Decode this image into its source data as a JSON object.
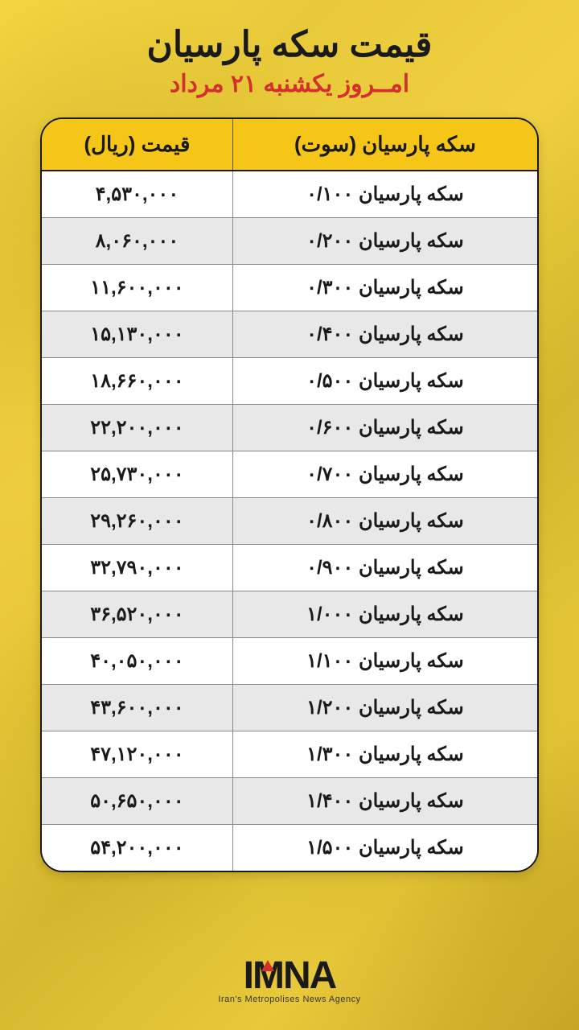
{
  "header": {
    "title": "قیمت سکه پارسیان",
    "subtitle": "امــروز یکشنبه ۲۱ مرداد"
  },
  "table": {
    "type": "table",
    "columns": [
      "سکه پارسیان (سوت)",
      "قیمت (ریال)"
    ],
    "header_bg": "#f5c518",
    "header_fg": "#1a1a1a",
    "header_fontsize": 26,
    "border_color": "#1a1a1a",
    "row_alt_bg": "#e8e8e8",
    "row_bg": "#ffffff",
    "cell_fontsize": 24,
    "border_radius": 28,
    "rows": [
      {
        "name": "سکه پارسیان ۰/۱۰۰",
        "price": "۴,۵۳۰,۰۰۰"
      },
      {
        "name": "سکه پارسیان ۰/۲۰۰",
        "price": "۸,۰۶۰,۰۰۰"
      },
      {
        "name": "سکه پارسیان ۰/۳۰۰",
        "price": "۱۱,۶۰۰,۰۰۰"
      },
      {
        "name": "سکه پارسیان ۰/۴۰۰",
        "price": "۱۵,۱۳۰,۰۰۰"
      },
      {
        "name": "سکه پارسیان ۰/۵۰۰",
        "price": "۱۸,۶۶۰,۰۰۰"
      },
      {
        "name": "سکه پارسیان ۰/۶۰۰",
        "price": "۲۲,۲۰۰,۰۰۰"
      },
      {
        "name": "سکه پارسیان ۰/۷۰۰",
        "price": "۲۵,۷۳۰,۰۰۰"
      },
      {
        "name": "سکه پارسیان ۰/۸۰۰",
        "price": "۲۹,۲۶۰,۰۰۰"
      },
      {
        "name": "سکه پارسیان ۰/۹۰۰",
        "price": "۳۲,۷۹۰,۰۰۰"
      },
      {
        "name": "سکه پارسیان ۱/۰۰۰",
        "price": "۳۶,۵۲۰,۰۰۰"
      },
      {
        "name": "سکه پارسیان ۱/۱۰۰",
        "price": "۴۰,۰۵۰,۰۰۰"
      },
      {
        "name": "سکه پارسیان ۱/۲۰۰",
        "price": "۴۳,۶۰۰,۰۰۰"
      },
      {
        "name": "سکه پارسیان ۱/۳۰۰",
        "price": "۴۷,۱۲۰,۰۰۰"
      },
      {
        "name": "سکه پارسیان ۱/۴۰۰",
        "price": "۵۰,۶۵۰,۰۰۰"
      },
      {
        "name": "سکه پارسیان ۱/۵۰۰",
        "price": "۵۴,۲۰۰,۰۰۰"
      }
    ]
  },
  "footer": {
    "logo_text": "IMNA",
    "tagline": "Iran's Metropolises News Agency"
  },
  "colors": {
    "background_gradient_a": "#f5d742",
    "background_gradient_b": "#c9a828",
    "title_color": "#1a1a1a",
    "subtitle_color": "#d32f2f",
    "accent_red": "#d32f2f"
  }
}
